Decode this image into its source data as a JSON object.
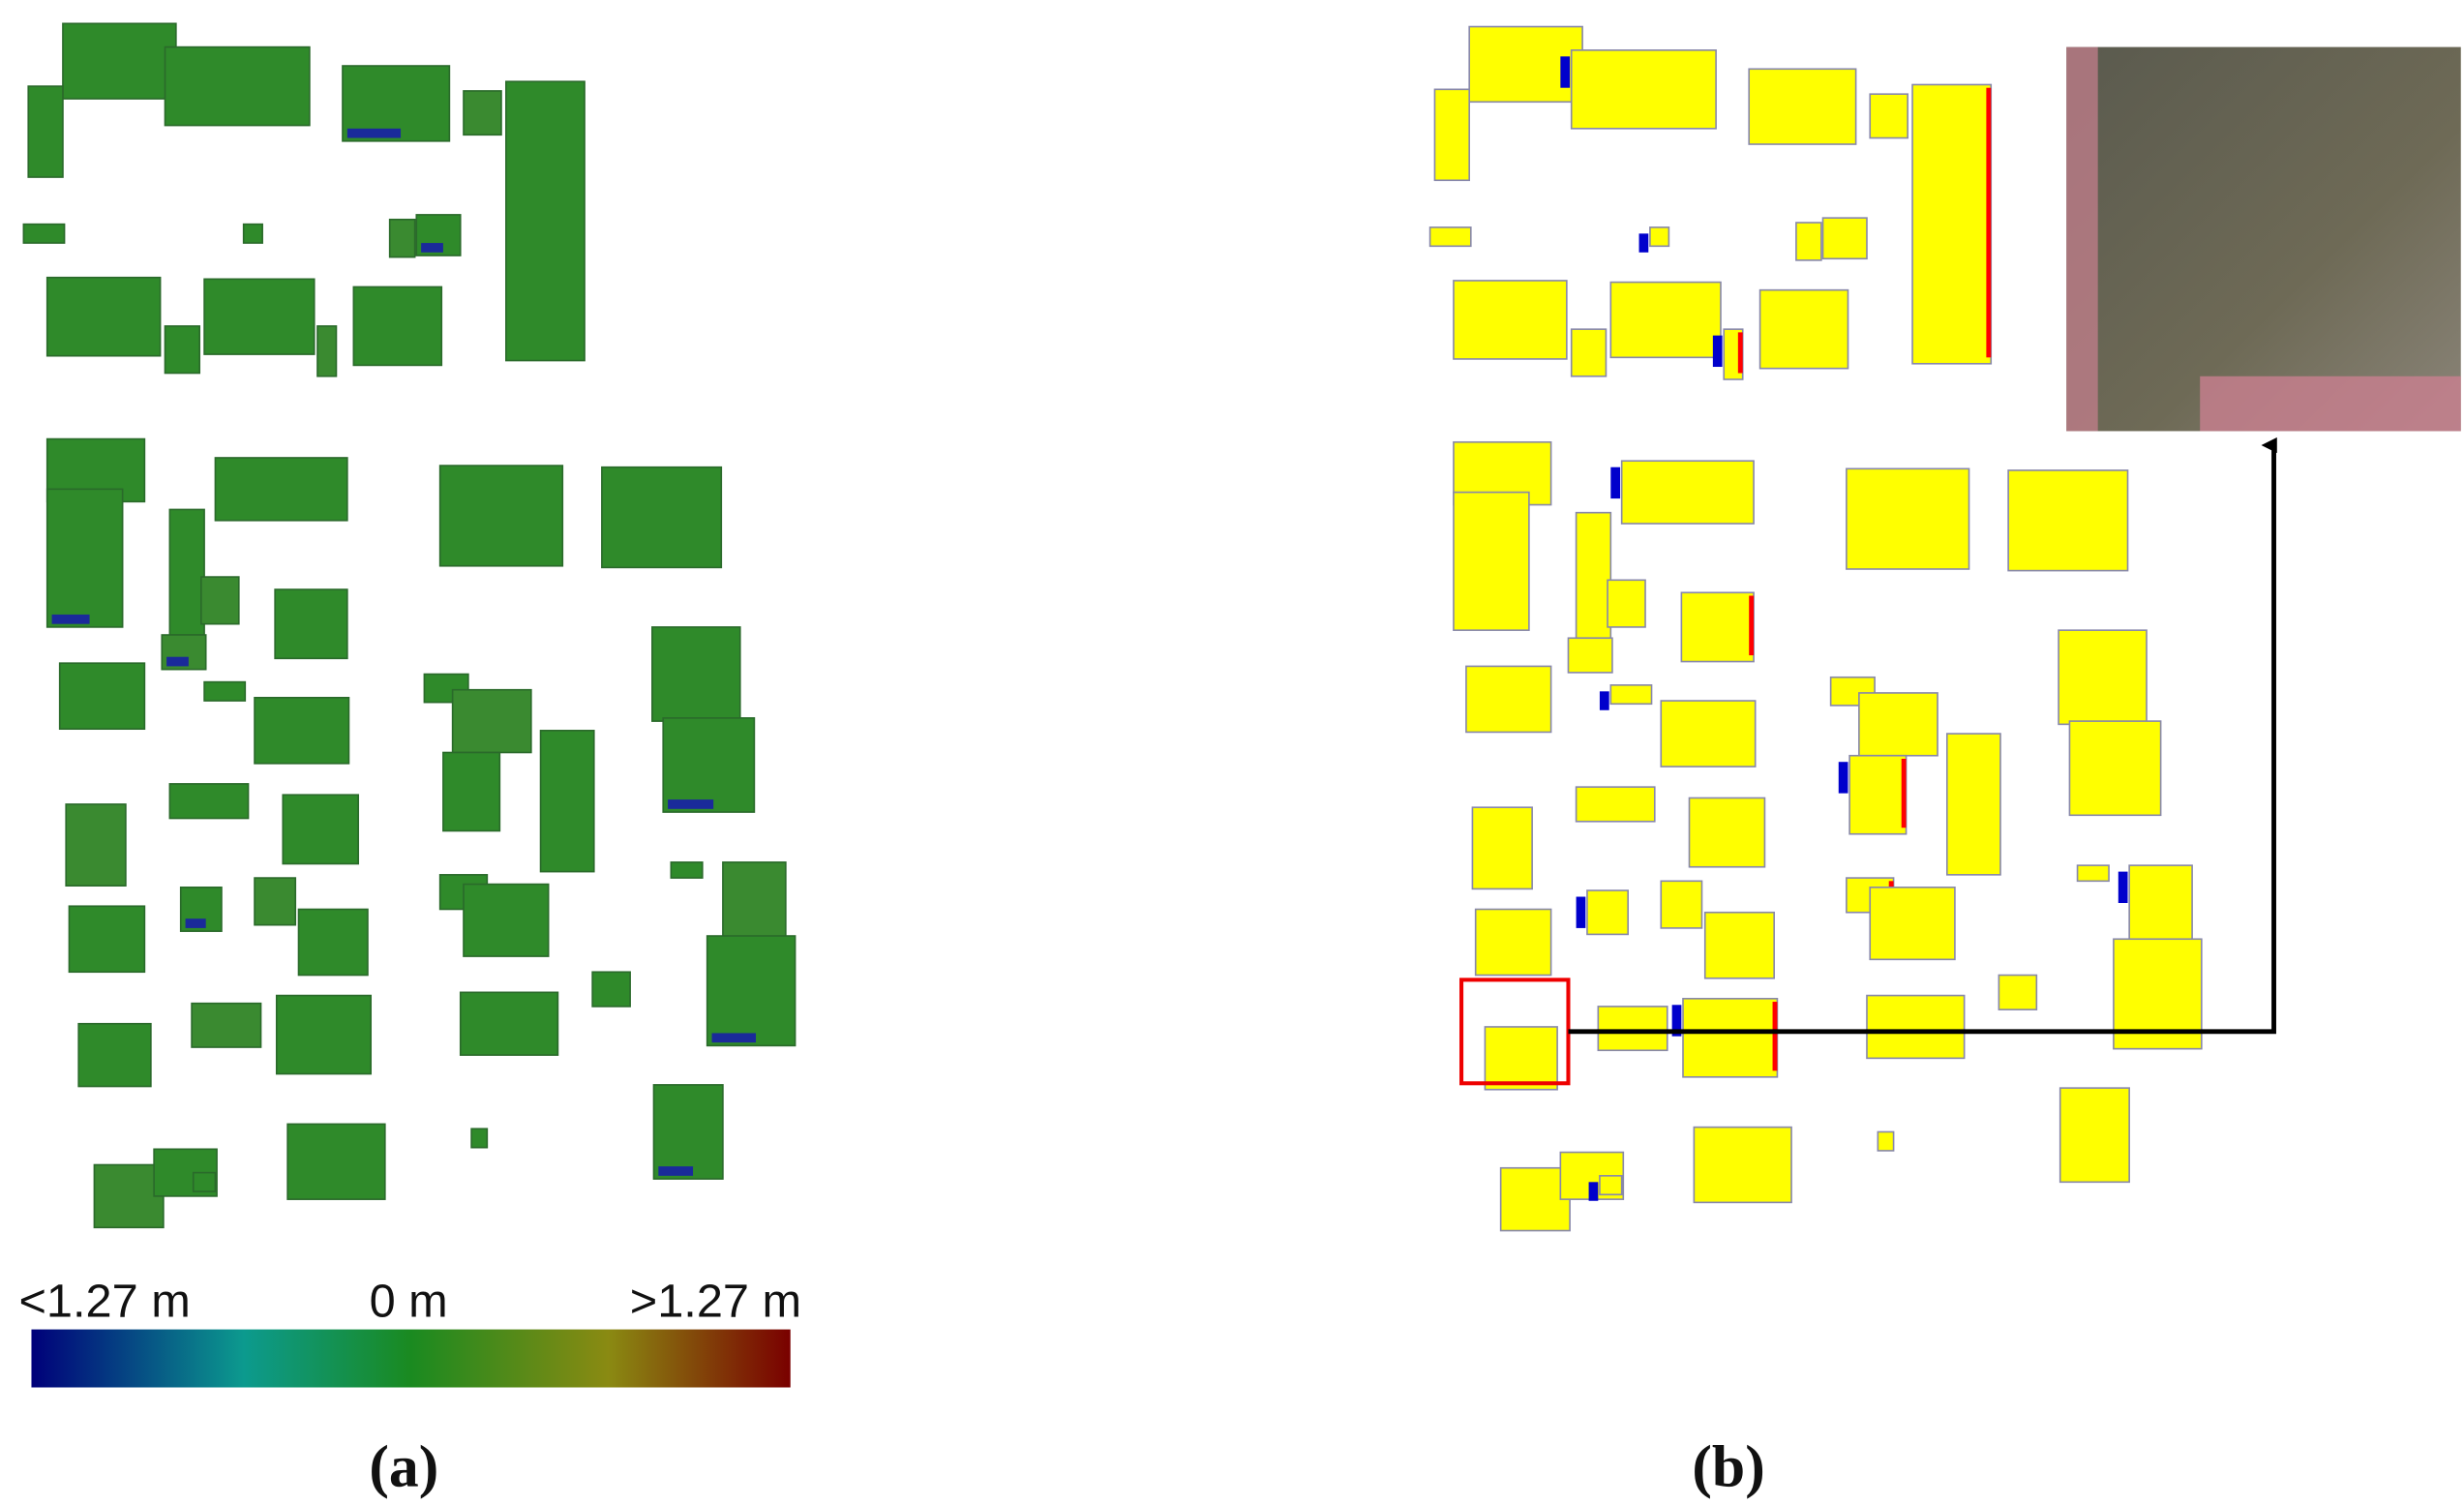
{
  "colorbar": {
    "min_label": "<1.27 m",
    "mid_label": "0 m",
    "max_label": ">1.27 m"
  },
  "panels": [
    {
      "label": "(a)"
    },
    {
      "label": "(b)"
    }
  ]
}
